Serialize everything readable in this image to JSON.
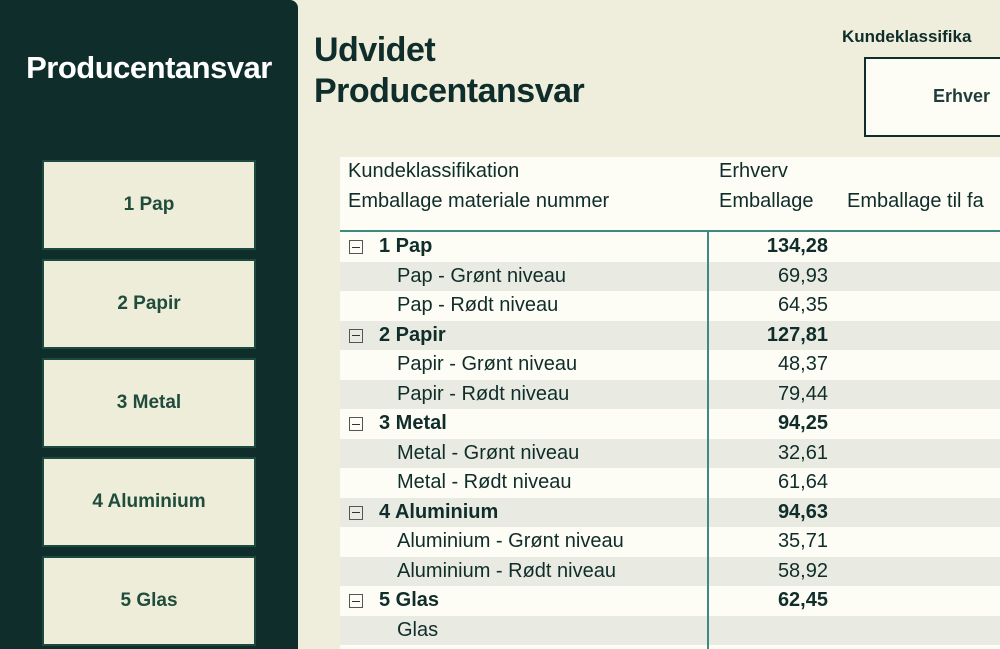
{
  "sidebar": {
    "title": "Producentansvar",
    "buttons": [
      "1 Pap",
      "2 Papir",
      "3 Metal",
      "4 Aluminium",
      "5 Glas"
    ]
  },
  "header": {
    "title_lines": [
      "Udvidet",
      "Producentansvar"
    ]
  },
  "slicer": {
    "label": "Kundeklassifika",
    "option": "Erhver"
  },
  "table": {
    "header": {
      "row1_label": "Kundeklassifikation",
      "row1_value": "Erhverv",
      "columns": [
        "Emballage materiale nummer",
        "Emballage",
        "Emballage til fa"
      ]
    },
    "groups": [
      {
        "label": "1 Pap",
        "total": "134,28",
        "items": [
          {
            "label": "Pap - Grønt niveau",
            "value": "69,93"
          },
          {
            "label": "Pap - Rødt niveau",
            "value": "64,35"
          }
        ]
      },
      {
        "label": "2 Papir",
        "total": "127,81",
        "items": [
          {
            "label": "Papir - Grønt niveau",
            "value": "48,37"
          },
          {
            "label": "Papir - Rødt niveau",
            "value": "79,44"
          }
        ]
      },
      {
        "label": "3 Metal",
        "total": "94,25",
        "items": [
          {
            "label": "Metal - Grønt niveau",
            "value": "32,61"
          },
          {
            "label": "Metal - Rødt niveau",
            "value": "61,64"
          }
        ]
      },
      {
        "label": "4 Aluminium",
        "total": "94,63",
        "items": [
          {
            "label": "Aluminium - Grønt niveau",
            "value": "35,71"
          },
          {
            "label": "Aluminium - Rødt niveau",
            "value": "58,92"
          }
        ]
      },
      {
        "label": "5 Glas",
        "total": "62,45",
        "items": [
          {
            "label": "Glas"
          }
        ]
      }
    ]
  }
}
